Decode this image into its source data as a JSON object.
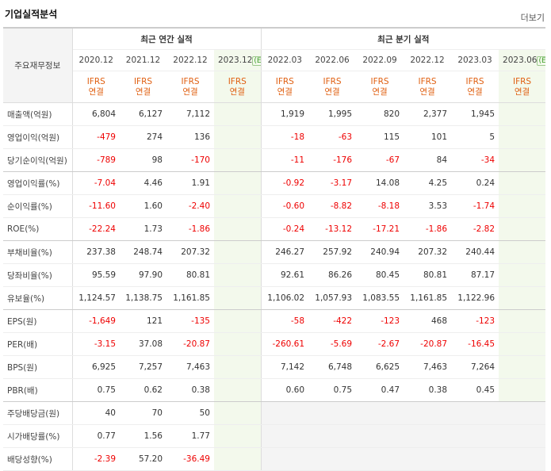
{
  "header": {
    "title": "기업실적분석",
    "more": "더보기"
  },
  "table": {
    "corner": "주요재무정보",
    "groups": [
      {
        "label": "최근 연간 실적",
        "span": 4
      },
      {
        "label": "최근 분기 실적",
        "span": 6
      }
    ],
    "columns": [
      {
        "period": "2020.12",
        "standard": "IFRS",
        "basis": "연결"
      },
      {
        "period": "2021.12",
        "standard": "IFRS",
        "basis": "연결"
      },
      {
        "period": "2022.12",
        "standard": "IFRS",
        "basis": "연결"
      },
      {
        "period": "2023.12",
        "estimate": "(E)",
        "standard": "IFRS",
        "basis": "연결"
      },
      {
        "period": "2022.03",
        "standard": "IFRS",
        "basis": "연결"
      },
      {
        "period": "2022.06",
        "standard": "IFRS",
        "basis": "연결"
      },
      {
        "period": "2022.09",
        "standard": "IFRS",
        "basis": "연결"
      },
      {
        "period": "2022.12",
        "standard": "IFRS",
        "basis": "연결"
      },
      {
        "period": "2023.03",
        "standard": "IFRS",
        "basis": "연결"
      },
      {
        "period": "2023.06",
        "estimate": "(E)",
        "standard": "IFRS",
        "basis": "연결"
      }
    ],
    "rows": [
      {
        "name": "매출액(억원)",
        "values": [
          "6,804",
          "6,127",
          "7,112",
          null,
          "1,919",
          "1,995",
          "820",
          "2,377",
          "1,945",
          null
        ]
      },
      {
        "name": "영업이익(억원)",
        "values": [
          "-479",
          "274",
          "136",
          null,
          "-18",
          "-63",
          "115",
          "101",
          "5",
          null
        ]
      },
      {
        "name": "당기순이익(억원)",
        "values": [
          "-789",
          "98",
          "-170",
          null,
          "-11",
          "-176",
          "-67",
          "84",
          "-34",
          null
        ]
      },
      {
        "name": "영업이익률(%)",
        "values": [
          "-7.04",
          "4.46",
          "1.91",
          null,
          "-0.92",
          "-3.17",
          "14.08",
          "4.25",
          "0.24",
          null
        ]
      },
      {
        "name": "순이익률(%)",
        "values": [
          "-11.60",
          "1.60",
          "-2.40",
          null,
          "-0.60",
          "-8.82",
          "-8.18",
          "3.53",
          "-1.74",
          null
        ]
      },
      {
        "name": "ROE(%)",
        "values": [
          "-22.24",
          "1.73",
          "-1.86",
          null,
          "-0.24",
          "-13.12",
          "-17.21",
          "-1.86",
          "-2.82",
          null
        ]
      },
      {
        "name": "부채비율(%)",
        "values": [
          "237.38",
          "248.74",
          "207.32",
          null,
          "246.27",
          "257.92",
          "240.94",
          "207.32",
          "240.44",
          null
        ]
      },
      {
        "name": "당좌비율(%)",
        "values": [
          "95.59",
          "97.90",
          "80.81",
          null,
          "92.61",
          "86.26",
          "80.45",
          "80.81",
          "87.17",
          null
        ]
      },
      {
        "name": "유보율(%)",
        "values": [
          "1,124.57",
          "1,138.75",
          "1,161.85",
          null,
          "1,106.02",
          "1,057.93",
          "1,083.55",
          "1,161.85",
          "1,122.96",
          null
        ]
      },
      {
        "name": "EPS(원)",
        "values": [
          "-1,649",
          "121",
          "-135",
          null,
          "-58",
          "-422",
          "-123",
          "468",
          "-123",
          null
        ]
      },
      {
        "name": "PER(배)",
        "values": [
          "-3.15",
          "37.08",
          "-20.87",
          null,
          "-260.61",
          "-5.69",
          "-2.67",
          "-20.87",
          "-16.45",
          null
        ]
      },
      {
        "name": "BPS(원)",
        "values": [
          "6,925",
          "7,257",
          "7,463",
          null,
          "7,142",
          "6,748",
          "6,625",
          "7,463",
          "7,264",
          null
        ]
      },
      {
        "name": "PBR(배)",
        "values": [
          "0.75",
          "0.62",
          "0.38",
          null,
          "0.60",
          "0.75",
          "0.47",
          "0.38",
          "0.45",
          null
        ]
      },
      {
        "name": "주당배당금(원)",
        "values": [
          "40",
          "70",
          "50",
          null,
          null,
          null,
          null,
          null,
          null,
          null
        ]
      },
      {
        "name": "시가배당률(%)",
        "values": [
          "0.77",
          "1.56",
          "1.77",
          null,
          null,
          null,
          null,
          null,
          null,
          null
        ]
      },
      {
        "name": "배당성향(%)",
        "values": [
          "-2.39",
          "57.20",
          "-36.49",
          null,
          null,
          null,
          null,
          null,
          null,
          null
        ]
      }
    ]
  }
}
